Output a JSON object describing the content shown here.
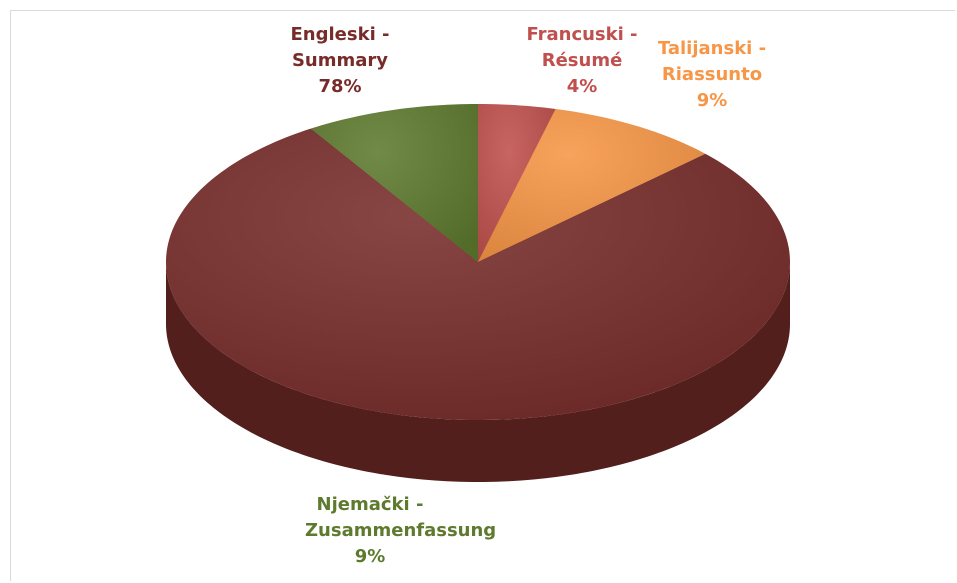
{
  "chart_data": {
    "type": "pie",
    "categories": [
      "Francuski - Résumé",
      "Talijanski - Riassunto",
      "Engleski - Summary",
      "Njemački - Zusammenfassung"
    ],
    "values": [
      4,
      9,
      78,
      9
    ],
    "value_labels": [
      "4%",
      "9%",
      "78%",
      "9%"
    ],
    "colors": [
      "#c0504d",
      "#f79646",
      "#772c2a",
      "#5e7a2e"
    ],
    "label_colors": [
      "#c0504d",
      "#f79646",
      "#772c2a",
      "#5e7a2e"
    ]
  }
}
